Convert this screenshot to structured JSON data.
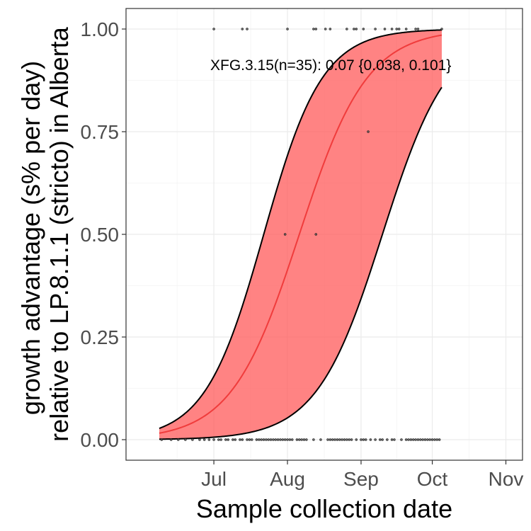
{
  "chart_data": {
    "type": "area",
    "title": "",
    "xlabel": "Sample collection date",
    "ylabel": "growth advantage (s% per day)\nrelative to LP.8.1.1 (stricto) in Alberta",
    "ylabel_lines": [
      "growth advantage (s% per day)",
      "relative to LP.8.1.1 (stricto) in Alberta"
    ],
    "x_ticks": [
      {
        "label": "Jul",
        "day": 30
      },
      {
        "label": "Aug",
        "day": 61
      },
      {
        "label": "Sep",
        "day": 92
      },
      {
        "label": "Oct",
        "day": 122
      },
      {
        "label": "Nov",
        "day": 153
      }
    ],
    "y_ticks": [
      {
        "label": "0.00",
        "value": 0
      },
      {
        "label": "0.25",
        "value": 0.25
      },
      {
        "label": "0.50",
        "value": 0.5
      },
      {
        "label": "0.75",
        "value": 0.75
      },
      {
        "label": "1.00",
        "value": 1
      }
    ],
    "xlim": [
      -7,
      160
    ],
    "ylim": [
      -0.05,
      1.05
    ],
    "grid": true,
    "annotation": "XFG.3.15(n=35): 0.07 {0.038, 0.101}",
    "colors": {
      "ribbon": "#ff5a5a",
      "line": "#f03c3c",
      "bound": "#000000",
      "points": "#444444"
    },
    "fit": {
      "x_start": 7,
      "x_end": 126,
      "mid_x": 66,
      "mid_lower": 101,
      "mid_upper": 51,
      "slope": 0.07,
      "slope_lower": 0.072,
      "slope_upper": 0.081
    },
    "series": [
      {
        "name": "XFG.3.15",
        "points": [
          {
            "x": 30,
            "y": 1
          },
          {
            "x": 42,
            "y": 1
          },
          {
            "x": 44,
            "y": 1
          },
          {
            "x": 61,
            "y": 1
          },
          {
            "x": 72,
            "y": 1
          },
          {
            "x": 73,
            "y": 1
          },
          {
            "x": 77,
            "y": 1
          },
          {
            "x": 79,
            "y": 1
          },
          {
            "x": 86,
            "y": 1
          },
          {
            "x": 89,
            "y": 1
          },
          {
            "x": 90,
            "y": 1
          },
          {
            "x": 93,
            "y": 1
          },
          {
            "x": 98,
            "y": 1
          },
          {
            "x": 102,
            "y": 1
          },
          {
            "x": 105,
            "y": 1
          },
          {
            "x": 107,
            "y": 1
          },
          {
            "x": 108,
            "y": 1
          },
          {
            "x": 111,
            "y": 1
          },
          {
            "x": 115,
            "y": 1
          },
          {
            "x": 116,
            "y": 1
          },
          {
            "x": 126,
            "y": 1
          },
          {
            "x": 95,
            "y": 0.75
          },
          {
            "x": 60,
            "y": 0.5
          },
          {
            "x": 73,
            "y": 0.5
          },
          {
            "x": 8,
            "y": 0
          },
          {
            "x": 12,
            "y": 0
          },
          {
            "x": 15,
            "y": 0
          },
          {
            "x": 18,
            "y": 0
          },
          {
            "x": 21,
            "y": 0
          },
          {
            "x": 24,
            "y": 0
          },
          {
            "x": 26,
            "y": 0
          },
          {
            "x": 28,
            "y": 0
          },
          {
            "x": 30,
            "y": 0
          },
          {
            "x": 32,
            "y": 0
          },
          {
            "x": 33,
            "y": 0
          },
          {
            "x": 35,
            "y": 0
          },
          {
            "x": 36,
            "y": 0
          },
          {
            "x": 38,
            "y": 0
          },
          {
            "x": 39,
            "y": 0
          },
          {
            "x": 41,
            "y": 0
          },
          {
            "x": 42,
            "y": 0
          },
          {
            "x": 44,
            "y": 0
          },
          {
            "x": 45,
            "y": 0
          },
          {
            "x": 46,
            "y": 0
          },
          {
            "x": 48,
            "y": 0
          },
          {
            "x": 49,
            "y": 0
          },
          {
            "x": 50,
            "y": 0
          },
          {
            "x": 51,
            "y": 0
          },
          {
            "x": 52,
            "y": 0
          },
          {
            "x": 53,
            "y": 0
          },
          {
            "x": 54,
            "y": 0
          },
          {
            "x": 55,
            "y": 0
          },
          {
            "x": 56,
            "y": 0
          },
          {
            "x": 57,
            "y": 0
          },
          {
            "x": 58,
            "y": 0
          },
          {
            "x": 59,
            "y": 0
          },
          {
            "x": 60,
            "y": 0
          },
          {
            "x": 61,
            "y": 0
          },
          {
            "x": 62,
            "y": 0
          },
          {
            "x": 63,
            "y": 0
          },
          {
            "x": 65,
            "y": 0
          },
          {
            "x": 66,
            "y": 0
          },
          {
            "x": 67,
            "y": 0
          },
          {
            "x": 68,
            "y": 0
          },
          {
            "x": 69,
            "y": 0
          },
          {
            "x": 72,
            "y": 0
          },
          {
            "x": 75,
            "y": 0
          },
          {
            "x": 78,
            "y": 0
          },
          {
            "x": 79,
            "y": 0
          },
          {
            "x": 80,
            "y": 0
          },
          {
            "x": 81,
            "y": 0
          },
          {
            "x": 82,
            "y": 0
          },
          {
            "x": 83,
            "y": 0
          },
          {
            "x": 84,
            "y": 0
          },
          {
            "x": 85,
            "y": 0
          },
          {
            "x": 86,
            "y": 0
          },
          {
            "x": 87,
            "y": 0
          },
          {
            "x": 88,
            "y": 0
          },
          {
            "x": 90,
            "y": 0
          },
          {
            "x": 92,
            "y": 0
          },
          {
            "x": 93,
            "y": 0
          },
          {
            "x": 94,
            "y": 0
          },
          {
            "x": 96,
            "y": 0
          },
          {
            "x": 98,
            "y": 0
          },
          {
            "x": 100,
            "y": 0
          },
          {
            "x": 101,
            "y": 0
          },
          {
            "x": 103,
            "y": 0
          },
          {
            "x": 105,
            "y": 0
          },
          {
            "x": 106,
            "y": 0
          },
          {
            "x": 109,
            "y": 0
          },
          {
            "x": 111,
            "y": 0
          },
          {
            "x": 112,
            "y": 0
          },
          {
            "x": 113,
            "y": 0
          },
          {
            "x": 114,
            "y": 0
          },
          {
            "x": 115,
            "y": 0
          },
          {
            "x": 116,
            "y": 0
          },
          {
            "x": 117,
            "y": 0
          },
          {
            "x": 118,
            "y": 0
          },
          {
            "x": 119,
            "y": 0
          },
          {
            "x": 120,
            "y": 0
          },
          {
            "x": 121,
            "y": 0
          },
          {
            "x": 122,
            "y": 0
          },
          {
            "x": 123,
            "y": 0
          },
          {
            "x": 124,
            "y": 0
          },
          {
            "x": 125,
            "y": 0
          }
        ]
      }
    ]
  }
}
